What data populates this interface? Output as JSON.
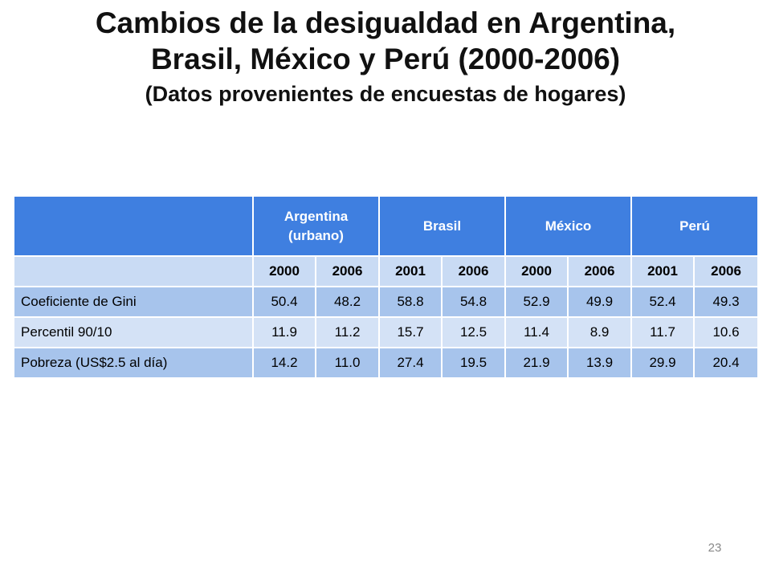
{
  "title": {
    "line1": "Cambios de la desigualdad en Argentina,",
    "line2": "Brasil, México y Perú (2000-2006)",
    "subtitle": "(Datos provenientes de encuestas de hogares)"
  },
  "table": {
    "countries": [
      {
        "line1": "Argentina",
        "line2": "(urbano)"
      },
      {
        "line1": "Brasil",
        "line2": ""
      },
      {
        "line1": "México",
        "line2": ""
      },
      {
        "line1": "Perú",
        "line2": ""
      }
    ],
    "years": [
      "2000",
      "2006",
      "2001",
      "2006",
      "2000",
      "2006",
      "2001",
      "2006"
    ],
    "rows": [
      {
        "label": "Coeficiente de Gini",
        "values": [
          "50.4",
          "48.2",
          "58.8",
          "54.8",
          "52.9",
          "49.9",
          "52.4",
          "49.3"
        ]
      },
      {
        "label": "Percentil 90/10",
        "values": [
          "11.9",
          "11.2",
          "15.7",
          "12.5",
          "11.4",
          "8.9",
          "11.7",
          "10.6"
        ]
      },
      {
        "label": "Pobreza (US$2.5 al día)",
        "values": [
          "14.2",
          "11.0",
          "27.4",
          "19.5",
          "21.9",
          "13.9",
          "29.9",
          "20.4"
        ]
      }
    ]
  },
  "page_number": "23"
}
